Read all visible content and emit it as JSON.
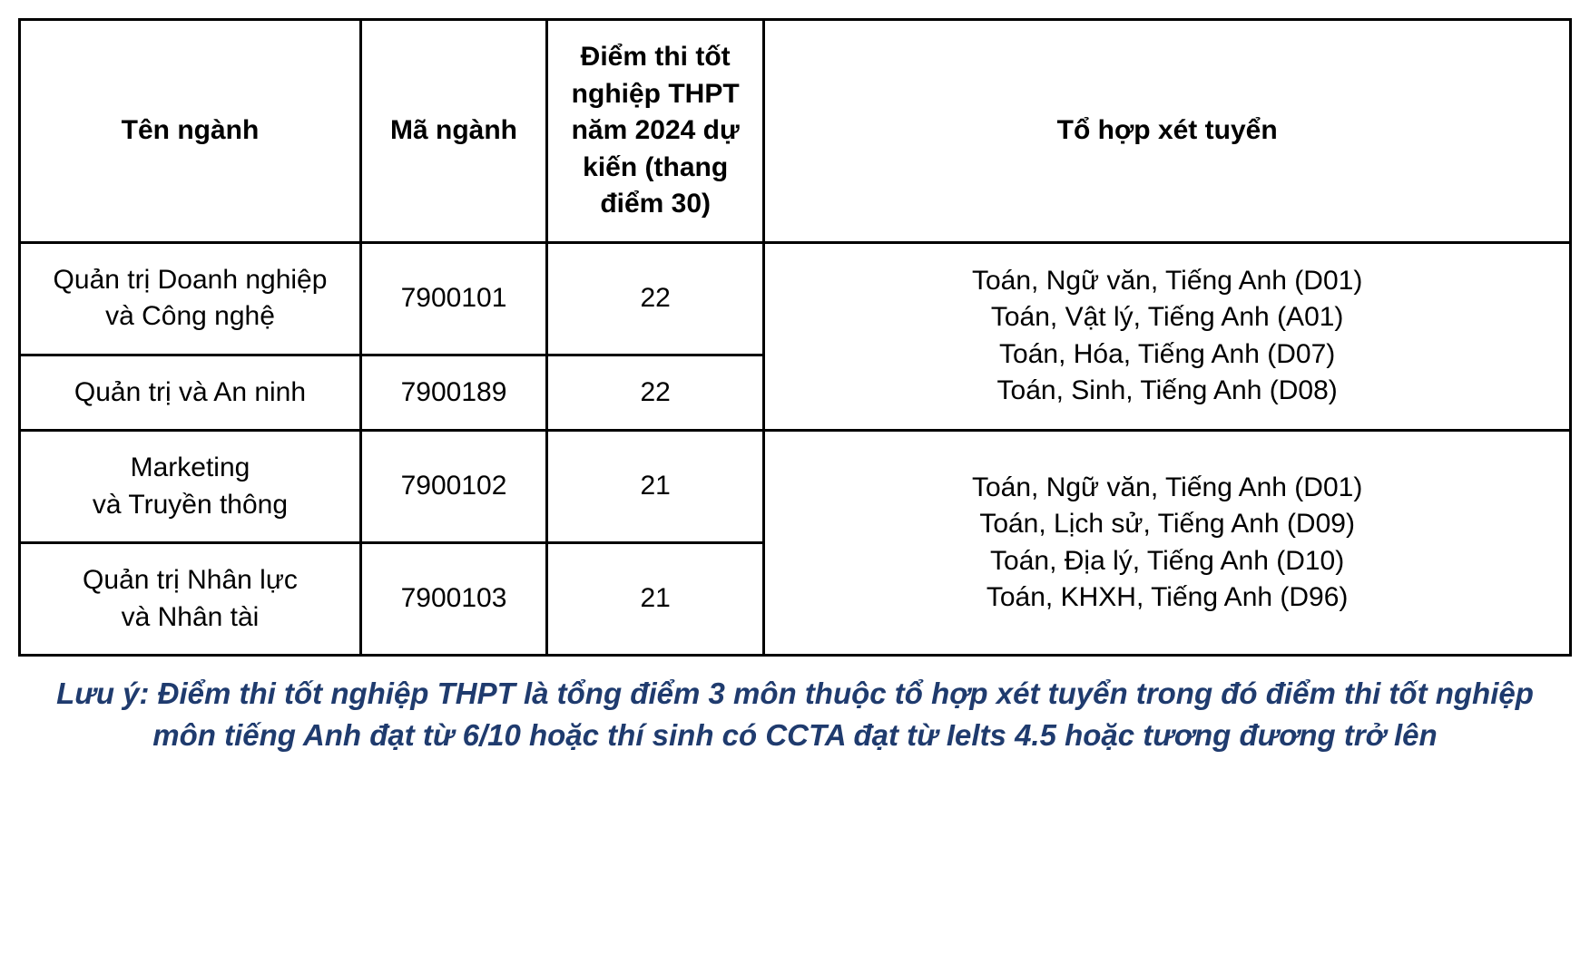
{
  "table": {
    "headers": {
      "name": "Tên ngành",
      "code": "Mã ngành",
      "score": "Điểm thi tốt nghiệp THPT năm 2024 dự kiến (thang điểm 30)",
      "combo": "Tổ hợp xét tuyển"
    },
    "header_fontsize": 30,
    "header_fontweight": 700,
    "cell_fontsize": 30,
    "border_color": "#000000",
    "border_width": 3,
    "text_color": "#000000",
    "background_color": "#ffffff",
    "column_widths_pct": [
      22,
      12,
      14,
      52
    ],
    "groups": [
      {
        "combo_lines": [
          "Toán, Ngữ văn, Tiếng Anh (D01)",
          "Toán, Vật lý, Tiếng Anh (A01)",
          "Toán, Hóa, Tiếng Anh (D07)",
          "Toán, Sinh, Tiếng Anh (D08)"
        ],
        "rows": [
          {
            "name_line1": "Quản trị Doanh nghiệp",
            "name_line2": "và Công nghệ",
            "code": "7900101",
            "score": "22"
          },
          {
            "name_line1": "Quản trị và An ninh",
            "name_line2": "",
            "code": "7900189",
            "score": "22"
          }
        ]
      },
      {
        "combo_lines": [
          "Toán, Ngữ văn, Tiếng Anh (D01)",
          "Toán, Lịch sử, Tiếng Anh (D09)",
          "Toán, Địa lý, Tiếng Anh (D10)",
          "Toán, KHXH, Tiếng Anh (D96)"
        ],
        "rows": [
          {
            "name_line1": "Marketing",
            "name_line2": "và Truyền thông",
            "code": "7900102",
            "score": "21"
          },
          {
            "name_line1": "Quản trị Nhân lực",
            "name_line2": "và Nhân tài",
            "code": "7900103",
            "score": "21"
          }
        ]
      }
    ]
  },
  "footnote": {
    "text": "Lưu ý: Điểm thi tốt nghiệp THPT là tổng điểm 3 môn thuộc tổ hợp xét tuyển trong đó điểm thi tốt nghiệp môn tiếng Anh đạt từ 6/10 hoặc thí sinh có CCTA đạt từ Ielts 4.5 hoặc tương đương trở lên",
    "color": "#1f3b6e",
    "fontsize": 33,
    "fontstyle": "italic",
    "fontweight": 700
  }
}
